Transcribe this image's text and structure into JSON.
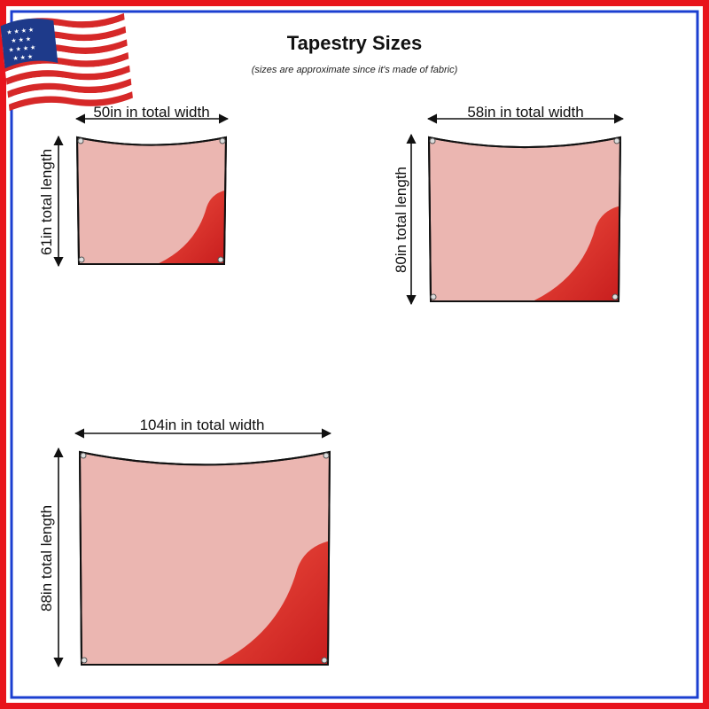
{
  "header": {
    "title": "Tapestry Sizes",
    "subtitle": "(sizes are approximate since it's made of fabric)"
  },
  "sizes": [
    {
      "width": "50in in total width",
      "length": "61in total length"
    },
    {
      "width": "58in in total width",
      "length": "80in total length"
    },
    {
      "width": "104in in total width",
      "length": "88in total length"
    }
  ]
}
